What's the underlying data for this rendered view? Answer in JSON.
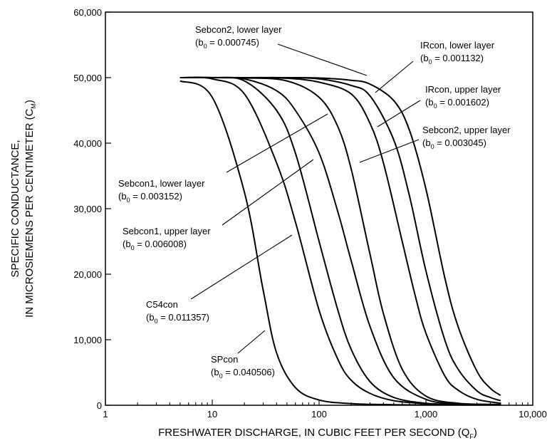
{
  "chart_data": {
    "type": "line",
    "x_scale": "log",
    "xlim": [
      1,
      10000
    ],
    "ylim": [
      0,
      60000
    ],
    "grid": false,
    "legend": "none",
    "xlabel": {
      "main": "FRESHWATER DISCHARGE, IN CUBIC FEET PER SECOND (Q",
      "sub": "F",
      "end": ")"
    },
    "ylabel_line1": "SPECIFIC CONDUCTANCE,",
    "ylabel_line2": {
      "main": "IN MICROSIEMENS PER CENTIMETER (C",
      "sub": "M",
      "end": ")"
    },
    "x_ticks": [
      {
        "value": 1,
        "label": "1"
      },
      {
        "value": 10,
        "label": "10"
      },
      {
        "value": 100,
        "label": "100"
      },
      {
        "value": 1000,
        "label": "1,000"
      },
      {
        "value": 10000,
        "label": "10,000"
      }
    ],
    "y_ticks": [
      {
        "value": 0,
        "label": "0"
      },
      {
        "value": 10000,
        "label": "10,000"
      },
      {
        "value": 20000,
        "label": "20,000"
      },
      {
        "value": 30000,
        "label": "30,000"
      },
      {
        "value": 40000,
        "label": "40,000"
      },
      {
        "value": 50000,
        "label": "50,000"
      },
      {
        "value": 60000,
        "label": "60,000"
      }
    ],
    "series": [
      {
        "name": "SPcon",
        "b0": "0.040506",
        "x": [
          5,
          10,
          20,
          30,
          40,
          60,
          100,
          200,
          500,
          1000,
          5000
        ],
        "y": [
          49500,
          47000,
          32500,
          17500,
          8000,
          2700,
          800,
          250,
          90,
          50,
          20
        ]
      },
      {
        "name": "C54con",
        "b0": "0.011357",
        "x": [
          5,
          10,
          20,
          40,
          60,
          100,
          150,
          200,
          300,
          500,
          1000,
          2000,
          5000
        ],
        "y": [
          50000,
          49800,
          47500,
          37000,
          28000,
          14500,
          7000,
          3800,
          1800,
          700,
          250,
          110,
          60
        ]
      },
      {
        "name": "Sebcon1, lower layer",
        "b0": "0.003152",
        "x": [
          5,
          10,
          20,
          40,
          60,
          100,
          150,
          200,
          300,
          500,
          1000,
          2000,
          5000
        ],
        "y": [
          50000,
          50000,
          49800,
          48000,
          45000,
          38500,
          29500,
          22000,
          12000,
          4200,
          900,
          250,
          100
        ]
      },
      {
        "name": "Sebcon1, upper layer",
        "b0": "0.006008",
        "x": [
          5,
          10,
          20,
          40,
          60,
          100,
          150,
          200,
          300,
          500,
          1000,
          2000,
          5000
        ],
        "y": [
          50000,
          50000,
          49500,
          45000,
          38500,
          25000,
          14500,
          8500,
          3600,
          1200,
          300,
          150,
          60
        ]
      },
      {
        "name": "Sebcon2, upper layer",
        "b0": "0.003045",
        "x": [
          5,
          20,
          50,
          100,
          150,
          200,
          300,
          400,
          600,
          1000,
          2000,
          5000
        ],
        "y": [
          50000,
          49950,
          49500,
          47000,
          42500,
          36000,
          23000,
          14000,
          5500,
          1400,
          300,
          120
        ]
      },
      {
        "name": "IRcon, upper layer",
        "b0": "0.001602",
        "x": [
          5,
          20,
          50,
          100,
          200,
          300,
          400,
          600,
          800,
          1000,
          1500,
          2000,
          3000,
          5000
        ],
        "y": [
          50000,
          50000,
          49900,
          49300,
          47500,
          43000,
          37000,
          25000,
          16500,
          11000,
          4500,
          2300,
          900,
          300
        ]
      },
      {
        "name": "IRcon, lower layer",
        "b0": "0.001132",
        "x": [
          5,
          20,
          50,
          100,
          200,
          300,
          500,
          700,
          1000,
          1500,
          2000,
          3000,
          4000,
          5000
        ],
        "y": [
          50000,
          50000,
          50000,
          49800,
          48800,
          47200,
          40500,
          32000,
          20500,
          10000,
          5500,
          2200,
          1200,
          700
        ]
      },
      {
        "name": "Sebcon2, lower layer",
        "b0": "0.000745",
        "x": [
          5,
          20,
          50,
          100,
          200,
          300,
          500,
          700,
          1000,
          1500,
          2000,
          3000,
          4000,
          5000
        ],
        "y": [
          50000,
          50000,
          50000,
          49950,
          49600,
          49000,
          46500,
          42000,
          33000,
          19500,
          12000,
          5200,
          2600,
          1500
        ]
      }
    ],
    "annotations": [
      {
        "series": "Sebcon2, lower layer",
        "line1": "Sebcon2, lower layer",
        "b0": "0.000745"
      },
      {
        "series": "IRcon, lower layer",
        "line1": "IRcon, lower layer",
        "b0": "0.001132"
      },
      {
        "series": "IRcon, upper layer",
        "line1": "IRcon, upper layer",
        "b0": "0.001602"
      },
      {
        "series": "Sebcon2, upper layer",
        "line1": "Sebcon2, upper layer",
        "b0": "0.003045"
      },
      {
        "series": "Sebcon1, lower layer",
        "line1": "Sebcon1, lower layer",
        "b0": "0.003152"
      },
      {
        "series": "Sebcon1, upper layer",
        "line1": "Sebcon1, upper layer",
        "b0": "0.006008"
      },
      {
        "series": "C54con",
        "line1": "C54con",
        "b0": "0.011357"
      },
      {
        "series": "SPcon",
        "line1": "SPcon",
        "b0": "0.040506"
      }
    ],
    "b_symbol": "b",
    "b_sub": "0",
    "b_eq": " = ",
    "b_close": ")",
    "b_open": "("
  }
}
